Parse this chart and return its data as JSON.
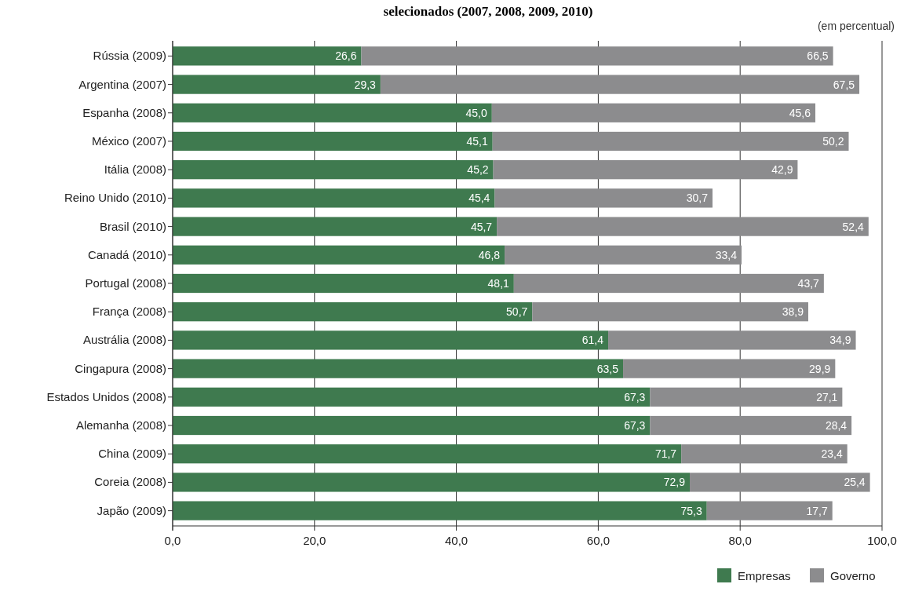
{
  "chart_data": {
    "type": "bar",
    "orientation": "horizontal",
    "stacked": true,
    "title": "selecionados (2007, 2008, 2009, 2010)",
    "annotations": [
      "(em percentual)"
    ],
    "categories": [
      "Rússia (2009)",
      "Argentina (2007)",
      "Espanha (2008)",
      "México (2007)",
      "Itália (2008)",
      "Reino Unido (2010)",
      "Brasil (2010)",
      "Canadá (2010)",
      "Portugal (2008)",
      "França (2008)",
      "Austrália (2008)",
      "Cingapura (2008)",
      "Estados Unidos (2008)",
      "Alemanha (2008)",
      "China (2009)",
      "Coreia (2008)",
      "Japão (2009)"
    ],
    "series": [
      {
        "name": "Empresas",
        "color": "#3f7a4f",
        "values": [
          26.6,
          29.3,
          45.0,
          45.1,
          45.2,
          45.4,
          45.7,
          46.8,
          48.1,
          50.7,
          61.4,
          63.5,
          67.3,
          67.3,
          71.7,
          72.9,
          75.3
        ],
        "value_labels": [
          "26,6",
          "29,3",
          "45,0",
          "45,1",
          "45,2",
          "45,4",
          "45,7",
          "46,8",
          "48,1",
          "50,7",
          "61,4",
          "63,5",
          "67,3",
          "67,3",
          "71,7",
          "72,9",
          "75,3"
        ]
      },
      {
        "name": "Governo",
        "color": "#8c8c8e",
        "values": [
          66.5,
          67.5,
          45.6,
          50.2,
          42.9,
          30.7,
          52.4,
          33.4,
          43.7,
          38.9,
          34.9,
          29.9,
          27.1,
          28.4,
          23.4,
          25.4,
          17.7
        ],
        "value_labels": [
          "66,5",
          "67,5",
          "45,6",
          "50,2",
          "42,9",
          "30,7",
          "52,4",
          "33,4",
          "43,7",
          "38,9",
          "34,9",
          "29,9",
          "27,1",
          "28,4",
          "23,4",
          "25,4",
          "17,7"
        ]
      }
    ],
    "xlim": [
      0,
      100
    ],
    "xticks": [
      {
        "value": 0,
        "label": "0,0"
      },
      {
        "value": 20,
        "label": "20,0"
      },
      {
        "value": 40,
        "label": "40,0"
      },
      {
        "value": 60,
        "label": "60,0"
      },
      {
        "value": 80,
        "label": "80,0"
      },
      {
        "value": 100,
        "label": "100,0"
      }
    ],
    "grid": "x",
    "legend": "bottom right"
  }
}
